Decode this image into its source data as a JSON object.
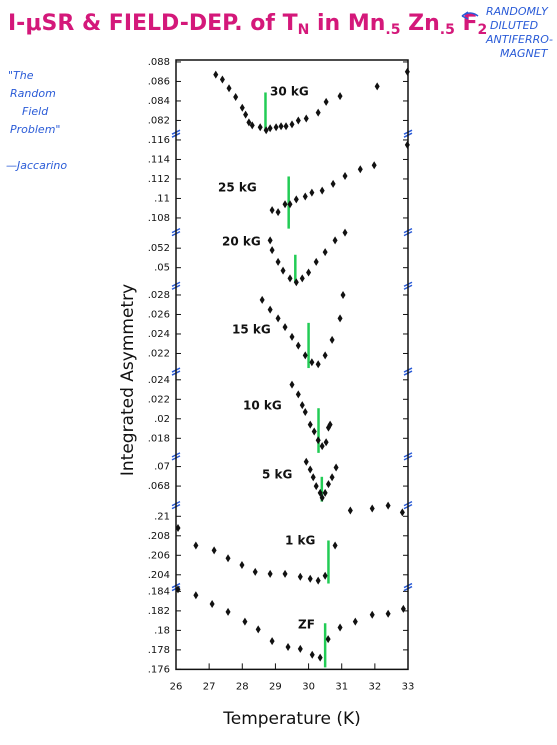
{
  "title": [
    "I-μSR & FIELD-DEP. of T",
    "N",
    " in Mn",
    ".5",
    " Zn",
    ".5",
    " F",
    "2"
  ],
  "side_note": [
    "RANDOMLY",
    "DILUTED",
    "ANTIFERRO-",
    "MAGNET"
  ],
  "quote": [
    "\"The",
    "Random",
    "Field",
    "Problem\""
  ],
  "quote_author": "—Jaccarino",
  "chart_data": {
    "type": "scatter",
    "xlabel": "Temperature (K)",
    "ylabel": "Integrated Asymmetry",
    "xlim": [
      26,
      33
    ],
    "xticks": [
      26,
      27,
      28,
      29,
      30,
      31,
      32,
      33
    ],
    "color": "#111111",
    "marker_color": "#22cc55",
    "panels": [
      {
        "label": "30 kG",
        "ylim": [
          0.0808,
          0.0882
        ],
        "yticks": [
          {
            "value": 0.082,
            "label": ".082"
          },
          {
            "value": 0.084,
            "label": ".084"
          },
          {
            "value": 0.086,
            "label": ".086"
          },
          {
            "value": 0.088,
            "label": ".088"
          }
        ],
        "x": [
          27.2,
          27.4,
          27.6,
          27.8,
          28.0,
          28.1,
          28.2,
          28.3,
          28.54,
          28.72,
          28.84,
          29.02,
          29.17,
          29.32,
          29.5,
          29.69,
          29.93,
          30.29,
          30.53,
          30.95,
          32.07,
          32.98
        ],
        "values": [
          0.0867,
          0.0862,
          0.0853,
          0.0844,
          0.0833,
          0.0826,
          0.0818,
          0.0815,
          0.0813,
          0.081,
          0.0812,
          0.0813,
          0.0814,
          0.0814,
          0.0816,
          0.082,
          0.0822,
          0.0828,
          0.0839,
          0.0845,
          0.0855,
          0.087
        ],
        "transition": 28.7
      },
      {
        "label": "25 kG",
        "ylim": [
          0.1067,
          0.1168
        ],
        "yticks": [
          {
            "value": 0.108,
            "label": ".108"
          },
          {
            "value": 0.11,
            "label": ".11"
          },
          {
            "value": 0.112,
            "label": ".112"
          },
          {
            "value": 0.114,
            "label": ".114"
          },
          {
            "value": 0.116,
            "label": ".116"
          }
        ],
        "x": [
          28.9,
          29.08,
          29.29,
          29.44,
          29.63,
          29.9,
          30.1,
          30.41,
          30.74,
          31.1,
          31.56,
          31.98,
          32.98
        ],
        "values": [
          0.1088,
          0.1086,
          0.1094,
          0.1094,
          0.1099,
          0.1102,
          0.1106,
          0.1108,
          0.1115,
          0.1123,
          0.113,
          0.1134,
          0.1155
        ],
        "transition": 29.4
      },
      {
        "label": "20 kG",
        "ylim": [
          0.0483,
          0.0538
        ],
        "yticks": [
          {
            "value": 0.05,
            "label": ".05"
          },
          {
            "value": 0.052,
            "label": ".052"
          }
        ],
        "x": [
          28.84,
          28.9,
          29.08,
          29.23,
          29.44,
          29.63,
          29.81,
          30.0,
          30.23,
          30.5,
          30.8,
          31.1
        ],
        "values": [
          0.0528,
          0.0518,
          0.0506,
          0.0497,
          0.0489,
          0.0485,
          0.0489,
          0.0495,
          0.0506,
          0.0516,
          0.0528,
          0.0536
        ],
        "transition": 29.6
      },
      {
        "label": "15 kG",
        "ylim": [
          0.0203,
          0.0291
        ],
        "yticks": [
          {
            "value": 0.022,
            "label": ".022"
          },
          {
            "value": 0.024,
            "label": ".024"
          },
          {
            "value": 0.026,
            "label": ".026"
          },
          {
            "value": 0.028,
            "label": ".028"
          }
        ],
        "x": [
          28.6,
          28.84,
          29.08,
          29.29,
          29.5,
          29.69,
          29.9,
          30.1,
          30.29,
          30.5,
          30.71,
          30.95,
          31.04
        ],
        "values": [
          0.0275,
          0.0265,
          0.0256,
          0.0247,
          0.0237,
          0.0228,
          0.0218,
          0.0211,
          0.0209,
          0.0218,
          0.0234,
          0.0256,
          0.028
        ],
        "transition": 30.0
      },
      {
        "label": "10 kG",
        "ylim": [
          0.0163,
          0.025
        ],
        "yticks": [
          {
            "value": 0.018,
            "label": ".018"
          },
          {
            "value": 0.02,
            "label": ".02"
          },
          {
            "value": 0.022,
            "label": ".022"
          },
          {
            "value": 0.024,
            "label": ".024"
          }
        ],
        "x": [
          29.5,
          29.69,
          29.81,
          29.9,
          30.05,
          30.17,
          30.29,
          30.41,
          30.53,
          30.6,
          30.65
        ],
        "values": [
          0.0235,
          0.0225,
          0.0214,
          0.0207,
          0.0194,
          0.0187,
          0.0178,
          0.0172,
          0.0176,
          0.0191,
          0.0194
        ],
        "transition": 30.3
      },
      {
        "label": "5 kG",
        "ylim": [
          0.0662,
          0.0712
        ],
        "yticks": [
          {
            "value": 0.068,
            "label": ".068"
          },
          {
            "value": 0.07,
            "label": ".07"
          }
        ],
        "x": [
          29.93,
          30.05,
          30.14,
          30.23,
          30.35,
          30.41,
          30.5,
          30.6,
          30.71,
          30.83
        ],
        "values": [
          0.0705,
          0.0697,
          0.0689,
          0.068,
          0.0673,
          0.0668,
          0.0673,
          0.0682,
          0.0689,
          0.0699
        ],
        "transition": 30.4
      },
      {
        "label": "1 kG",
        "ylim": [
          0.2029,
          0.2113
        ],
        "yticks": [
          {
            "value": 0.204,
            "label": ".204"
          },
          {
            "value": 0.206,
            "label": ".206"
          },
          {
            "value": 0.208,
            "label": ".208"
          },
          {
            "value": 0.21,
            "label": ".21"
          }
        ],
        "x": [
          26.06,
          26.6,
          27.15,
          27.57,
          27.99,
          28.39,
          28.84,
          29.29,
          29.75,
          30.05,
          30.29,
          30.5,
          30.8,
          31.26,
          31.92,
          32.4,
          32.83
        ],
        "values": [
          0.2088,
          0.207,
          0.2065,
          0.2057,
          0.205,
          0.2043,
          0.2041,
          0.2041,
          0.2038,
          0.2036,
          0.2034,
          0.2039,
          0.207,
          0.2106,
          0.2108,
          0.2111,
          0.2104
        ],
        "transition": 30.6
      },
      {
        "label": "ZF",
        "ylim": [
          0.176,
          0.1846
        ],
        "yticks": [
          {
            "value": 0.176,
            "label": ".176"
          },
          {
            "value": 0.178,
            "label": ".178"
          },
          {
            "value": 0.18,
            "label": ".18"
          },
          {
            "value": 0.182,
            "label": ".182"
          },
          {
            "value": 0.184,
            "label": ".184"
          }
        ],
        "x": [
          26.06,
          26.6,
          27.09,
          27.57,
          28.08,
          28.48,
          28.9,
          29.38,
          29.75,
          30.11,
          30.35,
          30.59,
          30.95,
          31.41,
          31.92,
          32.4,
          32.86
        ],
        "values": [
          0.1842,
          0.1836,
          0.1827,
          0.1819,
          0.1809,
          0.1801,
          0.1789,
          0.1783,
          0.1781,
          0.1775,
          0.1772,
          0.1791,
          0.1803,
          0.1809,
          0.1816,
          0.1817,
          0.1822
        ],
        "transition": 30.5
      }
    ]
  }
}
